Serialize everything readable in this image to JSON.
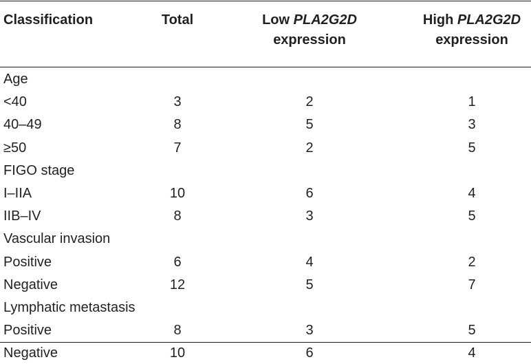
{
  "headers": {
    "classification": "Classification",
    "total": "Total",
    "low_prefix": "Low ",
    "low_gene": "PLA2G2D",
    "low_suffix": "expression",
    "high_prefix": "High ",
    "high_gene": "PLA2G2D",
    "high_suffix": "expression"
  },
  "rows": [
    {
      "label": "Age",
      "total": "",
      "low": "",
      "high": ""
    },
    {
      "label": "<40",
      "total": "3",
      "low": "2",
      "high": "1"
    },
    {
      "label": "40–49",
      "total": "8",
      "low": "5",
      "high": "3"
    },
    {
      "label": "≥50",
      "total": "7",
      "low": "2",
      "high": "5"
    },
    {
      "label": "FIGO stage",
      "total": "",
      "low": "",
      "high": ""
    },
    {
      "label": "I–IIA",
      "total": "10",
      "low": "6",
      "high": "4"
    },
    {
      "label": "IIB–IV",
      "total": "8",
      "low": "3",
      "high": "5"
    },
    {
      "label": "Vascular invasion",
      "total": "",
      "low": "",
      "high": ""
    },
    {
      "label": "Positive",
      "total": "6",
      "low": "4",
      "high": "2"
    },
    {
      "label": "Negative",
      "total": "12",
      "low": "5",
      "high": "7"
    },
    {
      "label": "Lymphatic metastasis",
      "total": "",
      "low": "",
      "high": ""
    },
    {
      "label": "Positive",
      "total": "8",
      "low": "3",
      "high": "5"
    },
    {
      "label": "Negative",
      "total": "10",
      "low": "6",
      "high": "4"
    }
  ]
}
